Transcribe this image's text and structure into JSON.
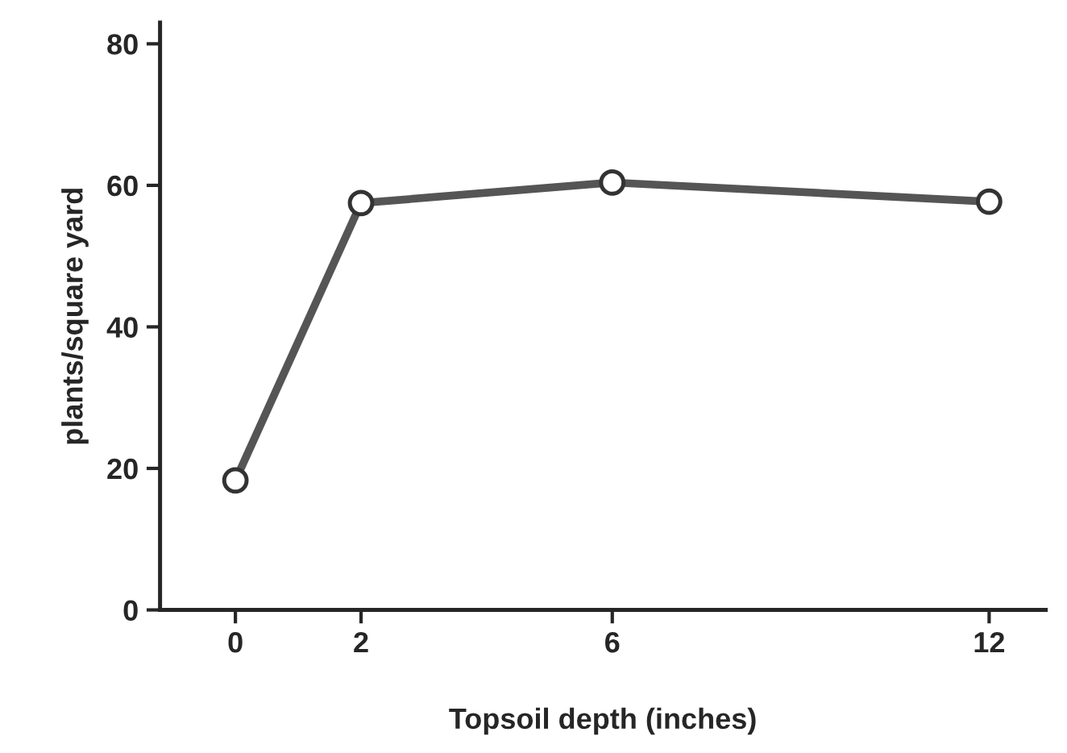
{
  "chart_data": {
    "type": "line",
    "xlabel": "Topsoil depth (inches)",
    "ylabel": "plants/square yard",
    "x": [
      0,
      2,
      6,
      12
    ],
    "series": [
      {
        "color": "#555555",
        "values": [
          18.3,
          57.5,
          60.4,
          57.7
        ]
      }
    ],
    "xlim": [
      -1.2,
      12.9
    ],
    "xticks": [
      0,
      2,
      6,
      12
    ],
    "ylim": [
      0,
      83
    ],
    "yticks": [
      0,
      20,
      40,
      60,
      80
    ],
    "marker": "circle",
    "line_style": "solid",
    "grid": false,
    "legend": false
  }
}
